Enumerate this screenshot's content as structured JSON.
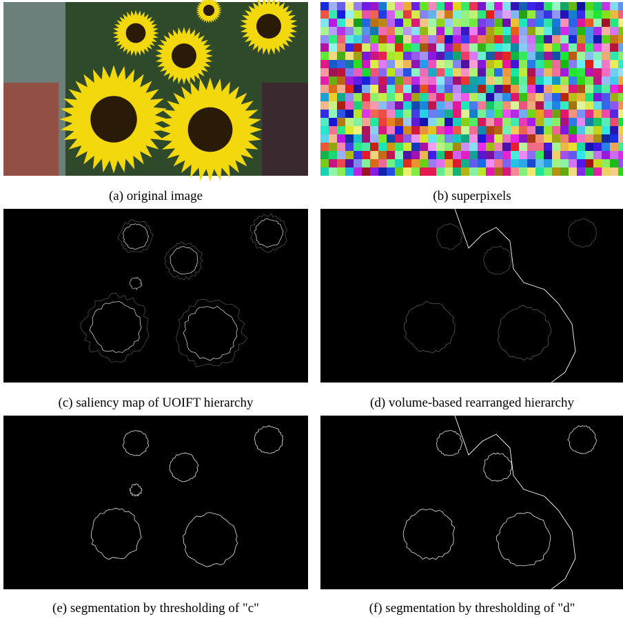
{
  "figure": {
    "panels": [
      {
        "caption": "(a) original image"
      },
      {
        "caption": "(b) superpixels"
      },
      {
        "caption": "(c) saliency map of UOIFT hierarchy"
      },
      {
        "caption": "(d) volume-based rearranged hierarchy"
      },
      {
        "caption": "(e) segmentation by thresholding of \"c\""
      },
      {
        "caption": "(f) segmentation by thresholding of \"d\""
      }
    ]
  }
}
